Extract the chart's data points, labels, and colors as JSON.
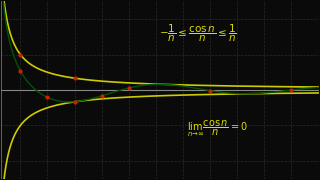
{
  "background_color": "#0a0a0a",
  "grid_color": "#2a2a2a",
  "axis_color": "#888888",
  "curve_upper_color": "#cccc00",
  "curve_lower_color": "#cccc00",
  "curve_cos_color": "#005500",
  "dot_color": "#cc2200",
  "xmin": 0.3,
  "xmax": 12,
  "ymin": -2.5,
  "ymax": 2.5,
  "formula_top": "$-\\dfrac{1}{n} \\leq \\dfrac{\\cos n}{n} \\leq \\dfrac{1}{n}$",
  "formula_bottom": "$\\lim_{n\\to\\infty}\\dfrac{\\cos n}{n}=0$",
  "dot_x_values": [
    1,
    2,
    3,
    4,
    5,
    8,
    11
  ],
  "text_color": "#dddd00"
}
